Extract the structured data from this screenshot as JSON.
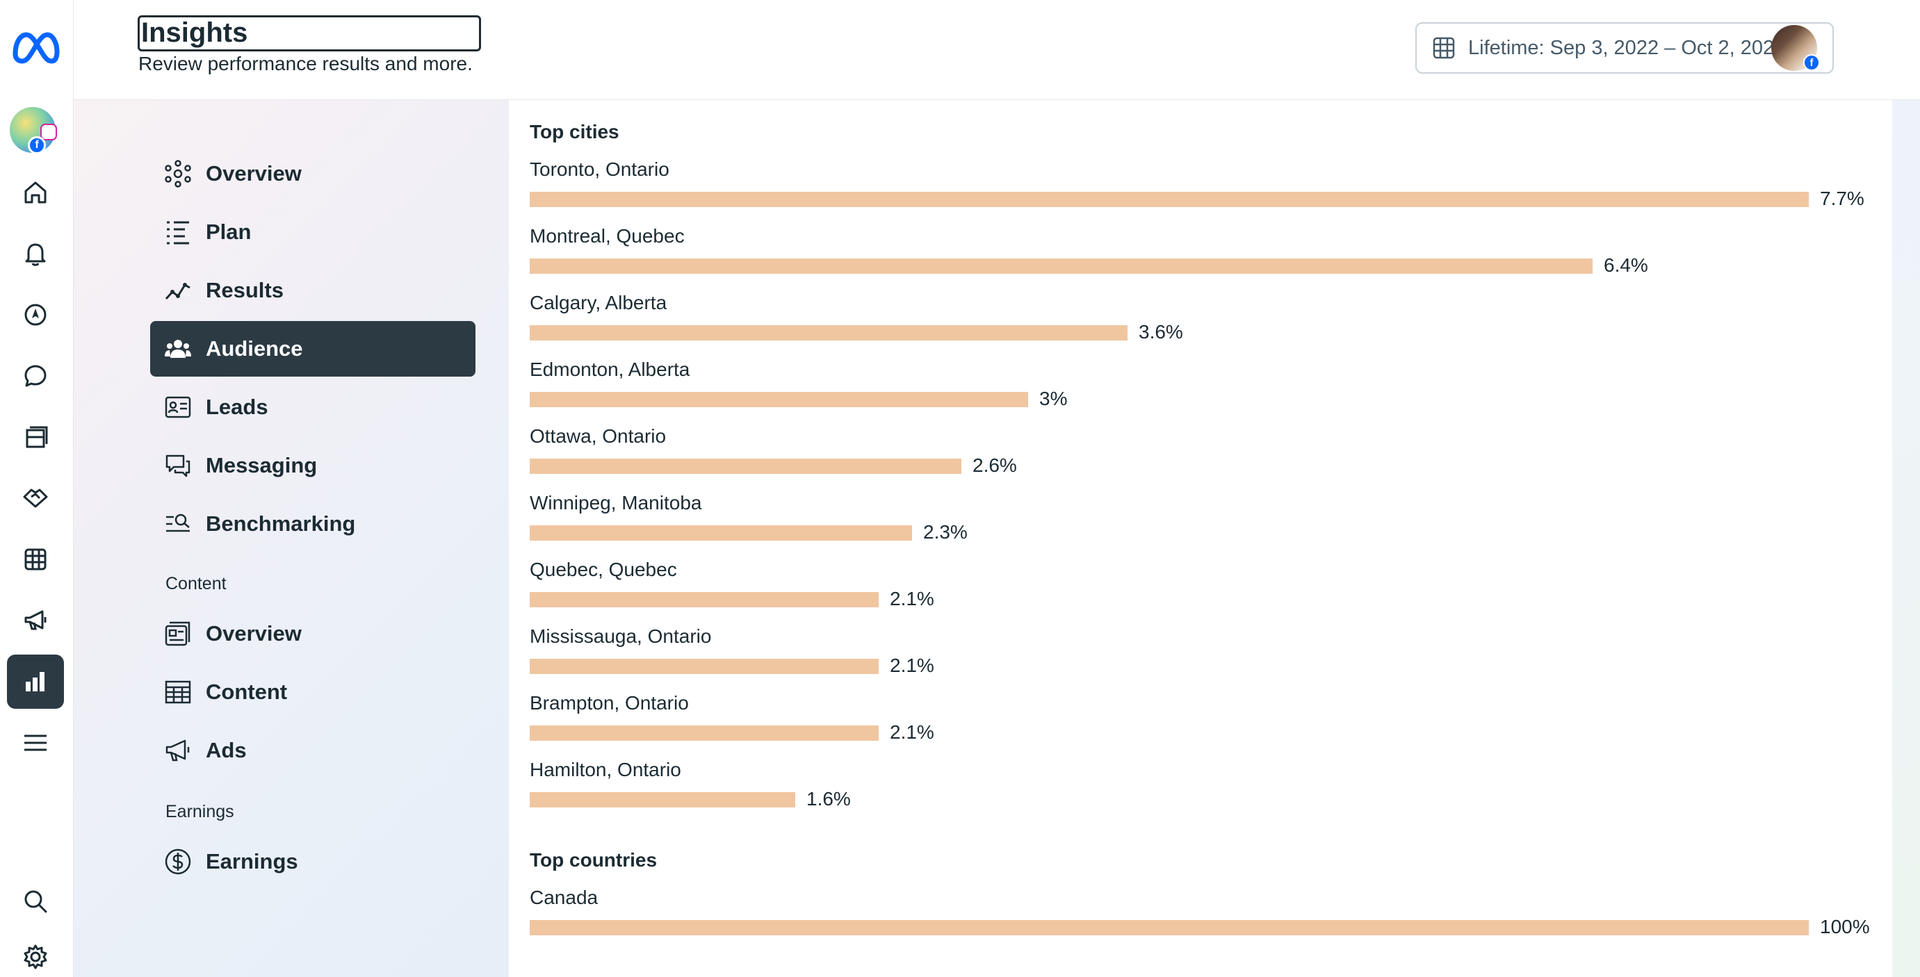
{
  "header": {
    "title": "Insights",
    "subtitle": "Review performance results and more.",
    "date_range": "Lifetime: Sep 3, 2022 – Oct 2, 2025"
  },
  "rail": {
    "items": [
      "meta-logo",
      "account-avatar",
      "home-icon",
      "notifications-icon",
      "compass-icon",
      "messages-icon",
      "pages-icon",
      "handshake-icon",
      "table-icon",
      "megaphone-icon",
      "insights-icon",
      "menu-icon",
      "search-icon",
      "gear-icon"
    ],
    "active": "insights-icon"
  },
  "nav": {
    "items": [
      {
        "label": "Overview",
        "icon": "overview-icon"
      },
      {
        "label": "Plan",
        "icon": "plan-icon"
      },
      {
        "label": "Results",
        "icon": "results-icon"
      },
      {
        "label": "Audience",
        "icon": "audience-icon",
        "active": true
      },
      {
        "label": "Leads",
        "icon": "leads-icon"
      },
      {
        "label": "Messaging",
        "icon": "messaging-icon"
      },
      {
        "label": "Benchmarking",
        "icon": "benchmarking-icon"
      }
    ],
    "content_section": "Content",
    "content_items": [
      {
        "label": "Overview",
        "icon": "content-overview-icon"
      },
      {
        "label": "Content",
        "icon": "content-table-icon"
      },
      {
        "label": "Ads",
        "icon": "ads-icon"
      }
    ],
    "earnings_section": "Earnings",
    "earnings_items": [
      {
        "label": "Earnings",
        "icon": "dollar-icon"
      }
    ]
  },
  "colors": {
    "accent_dark": "#2c3a44",
    "bar": "#f0c6a0",
    "text": "#1c2b33"
  },
  "chart_data": [
    {
      "type": "bar",
      "title": "Top cities",
      "categories": [
        "Toronto, Ontario",
        "Montreal, Quebec",
        "Calgary, Alberta",
        "Edmonton, Alberta",
        "Ottawa, Ontario",
        "Winnipeg, Manitoba",
        "Quebec, Quebec",
        "Mississauga, Ontario",
        "Brampton, Ontario",
        "Hamilton, Ontario"
      ],
      "values": [
        7.7,
        6.4,
        3.6,
        3,
        2.6,
        2.3,
        2.1,
        2.1,
        2.1,
        1.6
      ],
      "labels": [
        "7.7%",
        "6.4%",
        "3.6%",
        "3%",
        "2.6%",
        "2.3%",
        "2.1%",
        "2.1%",
        "2.1%",
        "1.6%"
      ]
    },
    {
      "type": "bar",
      "title": "Top countries",
      "categories": [
        "Canada"
      ],
      "values": [
        100
      ],
      "labels": [
        "100%"
      ]
    }
  ]
}
